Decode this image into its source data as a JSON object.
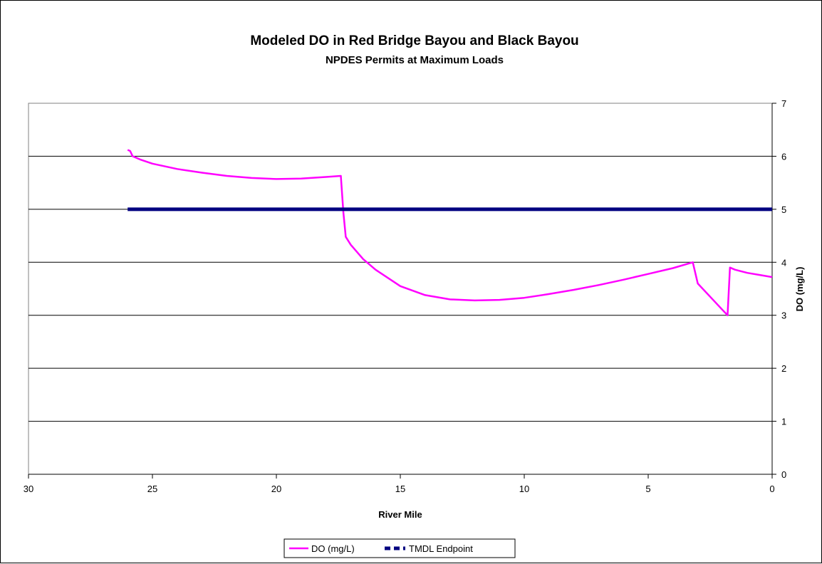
{
  "chart_data": {
    "type": "line",
    "title": "Modeled DO in Red Bridge Bayou and Black Bayou",
    "subtitle": "NPDES Permits at Maximum Loads",
    "xlabel": "River Mile",
    "ylabel": "DO (mg/L)",
    "xlim": [
      30,
      0
    ],
    "x_reversed": true,
    "ylim": [
      0,
      7
    ],
    "xticks": [
      30,
      25,
      20,
      15,
      10,
      5,
      0
    ],
    "yticks": [
      0,
      1,
      2,
      3,
      4,
      5,
      6,
      7
    ],
    "y_axis_side": "right",
    "grid": "horizontal",
    "legend_position": "bottom",
    "series": [
      {
        "name": "DO (mg/L)",
        "color": "#ff00ff",
        "style": "solid",
        "x": [
          26.0,
          25.9,
          25.8,
          25.5,
          25.0,
          24.0,
          23.0,
          22.0,
          21.0,
          20.0,
          19.0,
          18.0,
          17.4,
          17.3,
          17.2,
          17.0,
          16.5,
          16.0,
          15.0,
          14.0,
          13.0,
          12.0,
          11.0,
          10.0,
          9.0,
          8.0,
          7.0,
          6.0,
          5.0,
          4.0,
          3.2,
          3.1,
          3.0,
          2.5,
          2.0,
          1.8,
          1.7,
          1.5,
          1.0,
          0.5,
          0.0
        ],
        "y": [
          6.12,
          6.1,
          6.0,
          5.94,
          5.86,
          5.76,
          5.69,
          5.63,
          5.59,
          5.57,
          5.58,
          5.61,
          5.63,
          4.95,
          4.48,
          4.33,
          4.06,
          3.86,
          3.55,
          3.38,
          3.3,
          3.28,
          3.29,
          3.33,
          3.4,
          3.48,
          3.57,
          3.67,
          3.78,
          3.89,
          4.0,
          3.8,
          3.6,
          3.35,
          3.1,
          3.0,
          3.9,
          3.86,
          3.8,
          3.76,
          3.72
        ]
      },
      {
        "name": "TMDL Endpoint",
        "color": "#000080",
        "style": "dashed-thick",
        "x": [
          26.0,
          0.0
        ],
        "y": [
          5.0,
          5.0
        ]
      }
    ]
  }
}
